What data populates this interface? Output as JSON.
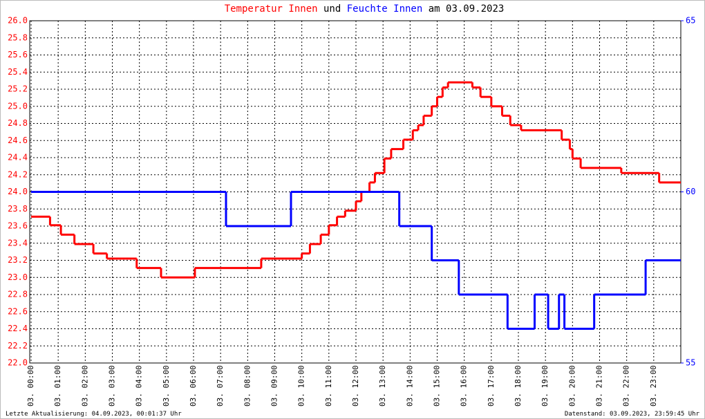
{
  "chart_data": {
    "type": "step-line",
    "title_joiner": "und",
    "title_suffix": "am 03.09.2023",
    "footer_left": "Letzte Aktualisierung: 04.09.2023, 00:01:37 Uhr",
    "footer_right": "Datenstand: 03.09.2023, 23:59:45 Uhr",
    "grid": true,
    "xlim": [
      0,
      24
    ],
    "xticks": [
      {
        "value": 0,
        "label": "03. 00:00"
      },
      {
        "value": 1,
        "label": "03. 01:00"
      },
      {
        "value": 2,
        "label": "03. 02:00"
      },
      {
        "value": 3,
        "label": "03. 03:00"
      },
      {
        "value": 4,
        "label": "03. 04:00"
      },
      {
        "value": 5,
        "label": "03. 05:00"
      },
      {
        "value": 6,
        "label": "03. 06:00"
      },
      {
        "value": 7,
        "label": "03. 07:00"
      },
      {
        "value": 8,
        "label": "03. 08:00"
      },
      {
        "value": 9,
        "label": "03. 09:00"
      },
      {
        "value": 10,
        "label": "03. 10:00"
      },
      {
        "value": 11,
        "label": "03. 11:00"
      },
      {
        "value": 12,
        "label": "03. 12:00"
      },
      {
        "value": 13,
        "label": "03. 13:00"
      },
      {
        "value": 14,
        "label": "03. 14:00"
      },
      {
        "value": 15,
        "label": "03. 15:00"
      },
      {
        "value": 16,
        "label": "03. 16:00"
      },
      {
        "value": 17,
        "label": "03. 17:00"
      },
      {
        "value": 18,
        "label": "03. 18:00"
      },
      {
        "value": 19,
        "label": "03. 19:00"
      },
      {
        "value": 20,
        "label": "03. 20:00"
      },
      {
        "value": 21,
        "label": "03. 21:00"
      },
      {
        "value": 22,
        "label": "03. 22:00"
      },
      {
        "value": 23,
        "label": "03. 23:00"
      }
    ],
    "ylim": [
      22,
      26
    ],
    "yticks": [
      {
        "value": 22,
        "label": "22.0"
      },
      {
        "value": 22.2,
        "label": "22.2"
      },
      {
        "value": 22.4,
        "label": "22.4"
      },
      {
        "value": 22.6,
        "label": "22.6"
      },
      {
        "value": 22.8,
        "label": "22.8"
      },
      {
        "value": 23,
        "label": "23.0"
      },
      {
        "value": 23.2,
        "label": "23.2"
      },
      {
        "value": 23.4,
        "label": "23.4"
      },
      {
        "value": 23.6,
        "label": "23.6"
      },
      {
        "value": 23.8,
        "label": "23.8"
      },
      {
        "value": 24,
        "label": "24.0"
      },
      {
        "value": 24.2,
        "label": "24.2"
      },
      {
        "value": 24.4,
        "label": "24.4"
      },
      {
        "value": 24.6,
        "label": "24.6"
      },
      {
        "value": 24.8,
        "label": "24.8"
      },
      {
        "value": 25,
        "label": "25.0"
      },
      {
        "value": 25.2,
        "label": "25.2"
      },
      {
        "value": 25.4,
        "label": "25.4"
      },
      {
        "value": 25.6,
        "label": "25.6"
      },
      {
        "value": 25.8,
        "label": "25.8"
      },
      {
        "value": 26,
        "label": "26.0"
      }
    ],
    "y2lim": [
      55,
      65
    ],
    "y2ticks": [
      55,
      60,
      65
    ],
    "series": [
      {
        "name": "Temperatur Innen",
        "color": "#ff0000",
        "x": [
          0,
          0.7,
          1.1,
          1.6,
          2.3,
          2.8,
          3.9,
          4.8,
          6.05,
          8.5,
          10.0,
          10.3,
          10.7,
          11.0,
          11.3,
          11.6,
          12.0,
          12.2,
          12.5,
          12.7,
          13.05,
          13.3,
          13.75,
          14.1,
          14.3,
          14.5,
          14.8,
          15.0,
          15.2,
          15.4,
          16.3,
          16.6,
          17.0,
          17.4,
          17.7,
          18.1,
          19.6,
          19.9,
          20.0,
          20.3,
          21.8,
          23.2
        ],
        "values": [
          23.71,
          23.61,
          23.5,
          23.39,
          23.28,
          23.22,
          23.11,
          23.0,
          23.11,
          23.22,
          23.28,
          23.39,
          23.5,
          23.61,
          23.71,
          23.78,
          23.89,
          24.0,
          24.11,
          24.22,
          24.39,
          24.5,
          24.61,
          24.72,
          24.78,
          24.89,
          25.0,
          25.11,
          25.22,
          25.28,
          25.22,
          25.11,
          25.0,
          24.89,
          24.78,
          24.72,
          24.61,
          24.5,
          24.39,
          24.28,
          24.22,
          24.11
        ]
      },
      {
        "name": "Feuchte Innen",
        "color": "#0000ff",
        "axis": "y2",
        "x": [
          0,
          7.2,
          9.6,
          13.6,
          14.8,
          15.8,
          17.6,
          18.6,
          19.1,
          19.5,
          19.7,
          20.8,
          22.7
        ],
        "values": [
          60,
          59,
          60,
          59,
          58,
          57,
          56,
          57,
          56,
          57,
          56,
          57,
          58
        ]
      }
    ]
  }
}
